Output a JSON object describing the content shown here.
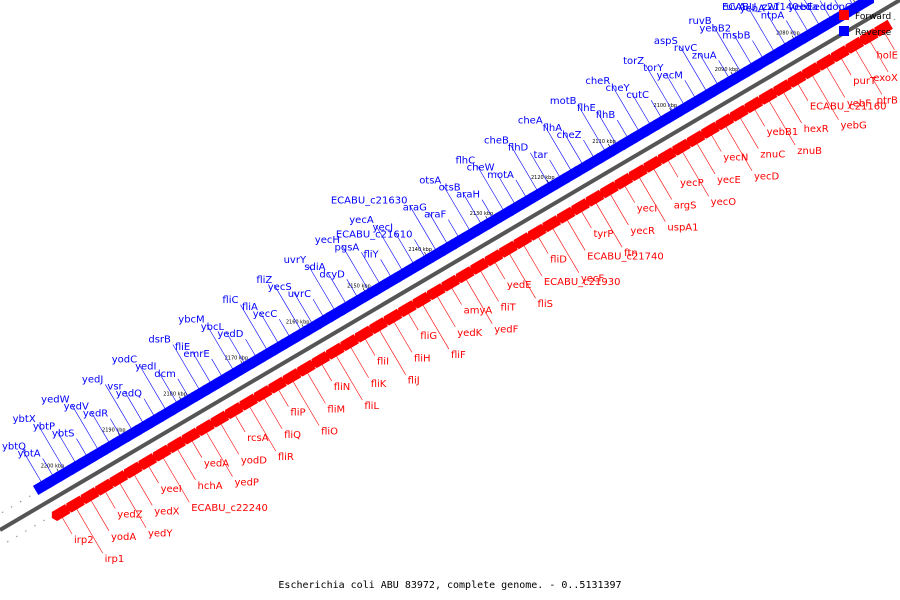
{
  "caption": "Escherichia coli ABU 83972, complete genome. - 0..5131397",
  "legend": [
    {
      "label": "Forward",
      "color": "#ff0000"
    },
    {
      "label": "Reverse",
      "color": "#0000ff"
    }
  ],
  "colors": {
    "forward": "#ff0000",
    "reverse": "#0000ff",
    "backbone": "#808080"
  },
  "ticks": [
    "2070 kbp",
    "2080 kbp",
    "2090 kbp",
    "2100 kbp",
    "2110 kbp",
    "2120 kbp",
    "2130 kbp",
    "2140 kbp",
    "2150 kbp",
    "2160 kbp",
    "2170 kbp",
    "2180 kbp",
    "2190 kbp",
    "2200 kbp"
  ],
  "reverse_genes": [
    "copC",
    "edd",
    "yebE",
    "eda",
    "ECABU_c21140",
    "zwf",
    "ntpA",
    "yebA",
    "ruvA",
    "msbB",
    "yebB2",
    "ruvB",
    "znuA",
    "ruvC",
    "aspS",
    "yecM",
    "torY",
    "torZ",
    "cutC",
    "cheY",
    "cheR",
    "flhB",
    "flhE",
    "motB",
    "cheZ",
    "flhA",
    "cheA",
    "tar",
    "flhD",
    "cheB",
    "motA",
    "cheW",
    "flhC",
    "araH",
    "otsB",
    "otsA",
    "araF",
    "araG",
    "ECABU_c21630",
    "ECABU_c21610",
    "yecJ",
    "yecA",
    "fliY",
    "pgsA",
    "yecH",
    "dcyD",
    "sdiA",
    "uvrY",
    "uvrC",
    "yecS",
    "fliZ",
    "yecC",
    "fliA",
    "fliC",
    "yedD",
    "ybcL",
    "ybcM",
    "emrE",
    "fliE",
    "dsrB",
    "dcm",
    "yedI",
    "yodC",
    "yedQ",
    "vsr",
    "yedJ",
    "yedR",
    "yedV",
    "yedW",
    "ybtS",
    "ybtP",
    "ybtX",
    "ybtA",
    "ybtQ"
  ],
  "forward_genes": [
    "holE",
    "exoX",
    "ptrB",
    "purT",
    "yebF",
    "yebG",
    "ECABU_c21160",
    "hexR",
    "znuB",
    "yebB1",
    "znuC",
    "yecD",
    "yecN",
    "yecE",
    "yecO",
    "yecP",
    "argS",
    "uspA1",
    "yecI",
    "yecR",
    "ftn",
    "tyrP",
    "ECABU_c21740",
    "yecF",
    "fliD",
    "ECABU_c21930",
    "fliS",
    "yedE",
    "fliT",
    "yedF",
    "amyA",
    "yedK",
    "fliF",
    "fliG",
    "fliH",
    "fliJ",
    "fliI",
    "fliK",
    "fliL",
    "fliN",
    "fliM",
    "fliO",
    "fliP",
    "fliQ",
    "fliR",
    "rcsA",
    "yodD",
    "yedP",
    "yedA",
    "hchA",
    "ECABU_c22240",
    "yeeI",
    "yedX",
    "yedY",
    "yedZ",
    "yodA",
    "irp1",
    "irp2"
  ]
}
